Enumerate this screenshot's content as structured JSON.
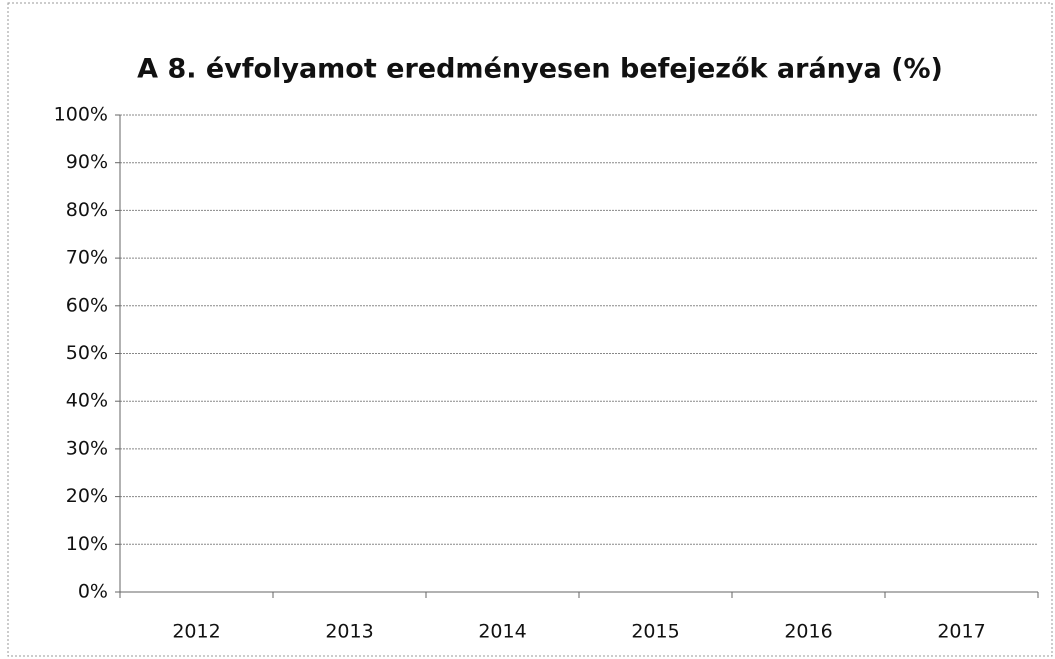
{
  "chart_data": {
    "type": "bar",
    "title": "A 8. évfolyamot eredményesen befejezők aránya (%)",
    "categories": [
      "2012",
      "2013",
      "2014",
      "2015",
      "2016",
      "2017"
    ],
    "ylim": [
      0,
      100
    ],
    "yticks": [
      {
        "value": 0,
        "label": "0%"
      },
      {
        "value": 10,
        "label": "10%"
      },
      {
        "value": 20,
        "label": "20%"
      },
      {
        "value": 30,
        "label": "30%"
      },
      {
        "value": 40,
        "label": "40%"
      },
      {
        "value": 50,
        "label": "50%"
      },
      {
        "value": 60,
        "label": "60%"
      },
      {
        "value": 70,
        "label": "70%"
      },
      {
        "value": 80,
        "label": "80%"
      },
      {
        "value": 90,
        "label": "90%"
      },
      {
        "value": 100,
        "label": "100%"
      }
    ],
    "grid": true
  }
}
